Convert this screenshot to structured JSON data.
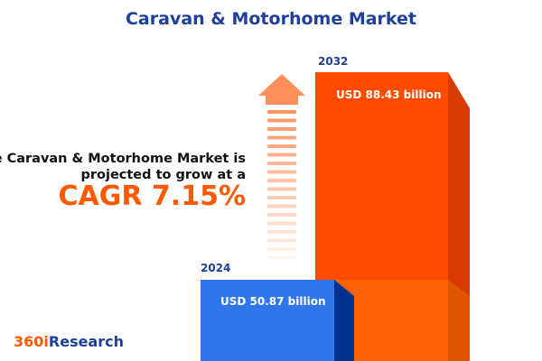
{
  "title": "Caravan & Motorhome Market",
  "description": {
    "line1": "The Caravan & Motorhome Market is",
    "line2": "projected to grow at a",
    "cagr": "CAGR 7.15%"
  },
  "logo": {
    "prefix": "360i",
    "suffix": "Research"
  },
  "colors": {
    "bar_2024": "#2f76ec",
    "bar_2024_side": "#003090",
    "bar_2032": "#ff4b00",
    "bar_2032_lower": "#ff6000",
    "bar_2032_side": "#d93c00",
    "arrow": "#ff8f5a",
    "title": "#1e3f9a"
  },
  "chart_data": {
    "type": "bar",
    "categories": [
      "2024",
      "2032"
    ],
    "values": [
      50.87,
      88.43
    ],
    "value_labels": [
      "USD 50.87 billion",
      "USD 88.43 billion"
    ],
    "unit": "USD billion",
    "cagr": "7.15%"
  }
}
